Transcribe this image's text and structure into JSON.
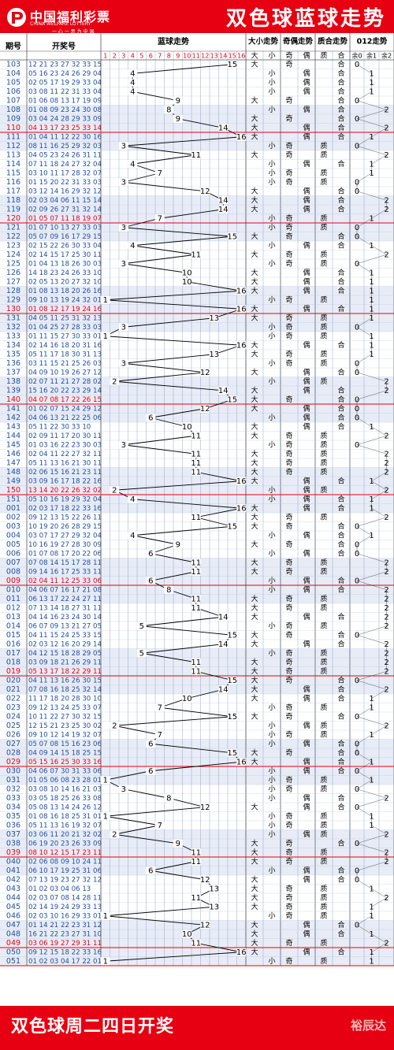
{
  "header": {
    "logo_cn": "中国福利彩票",
    "logo_en": "CHINA WELFARE LOTTERY",
    "logo_slogan": "一 心 一 意 为 中 国",
    "title": "双色球蓝球走势"
  },
  "footer": {
    "text": "双色球周二四日开奖",
    "brand": "裕辰达"
  },
  "colors": {
    "brand_red": "#e60012",
    "issue_blue": "#1e50a0",
    "highlight_red": "#e60012",
    "grid_blue": "#7896c8",
    "alt_fill": "#e8ecf6"
  },
  "chart_data": {
    "type": "table",
    "column_headers": {
      "issue": "期号",
      "numbers": "开奖号",
      "blue_trend": "蓝球走势",
      "big_small": "大小走势",
      "odd_even": "奇偶走势",
      "prime_composite": "质合走势",
      "mod3": "012走势"
    },
    "blue_labels": [
      "1",
      "2",
      "3",
      "4",
      "5",
      "6",
      "7",
      "8",
      "9",
      "10",
      "11",
      "12",
      "13",
      "14",
      "15",
      "16"
    ],
    "sub_labels": {
      "big": "大",
      "small": "小",
      "odd": "奇",
      "even": "偶",
      "prime": "质",
      "composite": "合",
      "r0": "余0",
      "r1": "余1",
      "r2": "余2"
    },
    "draws": [
      {
        "issue": "103",
        "numbers": "12 21 23 27 32 33 15",
        "blue": 15
      },
      {
        "issue": "104",
        "numbers": "05 16 23 24 26 29 04",
        "blue": 4
      },
      {
        "issue": "105",
        "numbers": "02 05 17 19 29 33 04",
        "blue": 4
      },
      {
        "issue": "106",
        "numbers": "03 08 11 22 31 33 04",
        "blue": 4
      },
      {
        "issue": "107",
        "numbers": "01 06 08 13 17 19 09",
        "blue": 9
      },
      {
        "issue": "108",
        "numbers": "01 08 09 23 24 30 08",
        "blue": 8
      },
      {
        "issue": "109",
        "numbers": "03 04 24 28 29 33 09",
        "blue": 9
      },
      {
        "issue": "110",
        "numbers": "04 13 17 23 25 33 14",
        "blue": 14
      },
      {
        "issue": "111",
        "numbers": "01 04 11 12 22 30 16",
        "blue": 16
      },
      {
        "issue": "112",
        "numbers": "08 11 16 25 29 32 03",
        "blue": 3
      },
      {
        "issue": "113",
        "numbers": "04 05 23 24 26 31 11",
        "blue": 11
      },
      {
        "issue": "114",
        "numbers": "07 11 18 24 27 32 04",
        "blue": 4
      },
      {
        "issue": "115",
        "numbers": "03 10 11 17 28 32 07",
        "blue": 7
      },
      {
        "issue": "116",
        "numbers": "01 15 20 22 31 33 03",
        "blue": 3
      },
      {
        "issue": "117",
        "numbers": "03 12 14 16 29 32 12",
        "blue": 12
      },
      {
        "issue": "118",
        "numbers": "02 03 04 06 11 15 14",
        "blue": 14
      },
      {
        "issue": "119",
        "numbers": "02 09 26 27 31 32 14",
        "blue": 14
      },
      {
        "issue": "120",
        "numbers": "01 05 07 11 18 19 07",
        "blue": 7
      },
      {
        "issue": "121",
        "numbers": "01 07 10 13 27 33 03",
        "blue": 3
      },
      {
        "issue": "122",
        "numbers": "05 07 09 16 17 29 15",
        "blue": 15
      },
      {
        "issue": "123",
        "numbers": "02 15 22 26 30 33 04",
        "blue": 4
      },
      {
        "issue": "124",
        "numbers": "02 14 15 17 25 30 11",
        "blue": 11
      },
      {
        "issue": "125",
        "numbers": "01 04 13 18 26 30 03",
        "blue": 3
      },
      {
        "issue": "126",
        "numbers": "14 18 23 24 26 33 10",
        "blue": 10
      },
      {
        "issue": "127",
        "numbers": "02 05 13 20 27 32 10",
        "blue": 10
      },
      {
        "issue": "128",
        "numbers": "01 08 13 18 20 26 16",
        "blue": 16
      },
      {
        "issue": "129",
        "numbers": "09 10 13 19 24 32 01",
        "blue": 1
      },
      {
        "issue": "130",
        "numbers": "01 08 12 17 19 24 16",
        "blue": 16
      },
      {
        "issue": "131",
        "numbers": "04 05 11 25 31 32 13",
        "blue": 13
      },
      {
        "issue": "132",
        "numbers": "01 04 25 27 28 33 03",
        "blue": 3
      },
      {
        "issue": "133",
        "numbers": "01 11 15 27 30 33 01",
        "blue": 1
      },
      {
        "issue": "134",
        "numbers": "02 14 16 18 20 31 16",
        "blue": 16
      },
      {
        "issue": "135",
        "numbers": "05 11 17 18 30 31 13",
        "blue": 13
      },
      {
        "issue": "136",
        "numbers": "03 11 15 21 25 26 03",
        "blue": 3
      },
      {
        "issue": "137",
        "numbers": "04 09 10 19 26 27 12",
        "blue": 12
      },
      {
        "issue": "138",
        "numbers": "02 07 11 21 27 28 02",
        "blue": 2
      },
      {
        "issue": "139",
        "numbers": "15 16 20 22 23 29 14",
        "blue": 14
      },
      {
        "issue": "140",
        "numbers": "04 07 08 17 22 26 15",
        "blue": 15
      },
      {
        "issue": "141",
        "numbers": "01 02 07 15 24 29 12",
        "blue": 12
      },
      {
        "issue": "142",
        "numbers": "04 06 13 21 22 25 06",
        "blue": 6
      },
      {
        "issue": "143",
        "numbers": "05 11 22 30 33 10",
        "blue": 10
      },
      {
        "issue": "144",
        "numbers": "02 09 11 17 20 30 11",
        "blue": 11
      },
      {
        "issue": "145",
        "numbers": "01 03 16 22 23 30 03",
        "blue": 3
      },
      {
        "issue": "146",
        "numbers": "02 04 11 22 27 32 11",
        "blue": 11
      },
      {
        "issue": "147",
        "numbers": "05 11 13 16 21 30 11",
        "blue": 11
      },
      {
        "issue": "148",
        "numbers": "02 06 15 16 21 23 11",
        "blue": 11
      },
      {
        "issue": "149",
        "numbers": "03 09 16 17 18 22 16",
        "blue": 16
      },
      {
        "issue": "150",
        "numbers": "13 14 20 22 26 32 02",
        "blue": 2
      },
      {
        "issue": "151",
        "numbers": "05 10 16 19 29 32 04",
        "blue": 4
      },
      {
        "issue": "001",
        "numbers": "02 03 17 18 22 33 16",
        "blue": 16
      },
      {
        "issue": "002",
        "numbers": "09 12 13 15 22 26 11",
        "blue": 11
      },
      {
        "issue": "003",
        "numbers": "10 19 20 26 28 29 15",
        "blue": 15
      },
      {
        "issue": "004",
        "numbers": "03 07 17 27 29 32 04",
        "blue": 4
      },
      {
        "issue": "005",
        "numbers": "10 16 19 27 28 30 09",
        "blue": 9
      },
      {
        "issue": "006",
        "numbers": "01 07 08 17 20 22 06",
        "blue": 6
      },
      {
        "issue": "007",
        "numbers": "07 08 14 15 17 28 11",
        "blue": 11
      },
      {
        "issue": "008",
        "numbers": "09 14 16 17 25 33 11",
        "blue": 11
      },
      {
        "issue": "009",
        "numbers": "02 04 11 12 25 33 06",
        "blue": 6
      },
      {
        "issue": "010",
        "numbers": "04 06 07 16 17 21 08",
        "blue": 8
      },
      {
        "issue": "011",
        "numbers": "06 13 17 22 24 27 11",
        "blue": 11
      },
      {
        "issue": "012",
        "numbers": "07 13 14 18 27 31 11",
        "blue": 11
      },
      {
        "issue": "013",
        "numbers": "04 14 16 23 24 30 14",
        "blue": 14
      },
      {
        "issue": "014",
        "numbers": "06 07 09 13 21 27 05",
        "blue": 5
      },
      {
        "issue": "015",
        "numbers": "04 11 15 24 25 33 15",
        "blue": 15
      },
      {
        "issue": "016",
        "numbers": "02 03 12 16 20 29 14",
        "blue": 14
      },
      {
        "issue": "017",
        "numbers": "04 12 15 18 28 29 05",
        "blue": 5
      },
      {
        "issue": "018",
        "numbers": "03 09 18 21 26 29 11",
        "blue": 11
      },
      {
        "issue": "019",
        "numbers": "05 13 17 18 22 29 11",
        "blue": 11
      },
      {
        "issue": "020",
        "numbers": "04 11 13 16 26 30 15",
        "blue": 15
      },
      {
        "issue": "021",
        "numbers": "07 08 16 18 25 32 14",
        "blue": 14
      },
      {
        "issue": "022",
        "numbers": "11 17 18 20 28 30 10",
        "blue": 10
      },
      {
        "issue": "023",
        "numbers": "09 12 13 24 25 33 07",
        "blue": 7
      },
      {
        "issue": "024",
        "numbers": "10 11 22 27 30 32 15",
        "blue": 15
      },
      {
        "issue": "025",
        "numbers": "12 15 21 23 25 30 02",
        "blue": 2
      },
      {
        "issue": "026",
        "numbers": "09 10 12 14 19 32 07",
        "blue": 7
      },
      {
        "issue": "027",
        "numbers": "05 07 08 15 16 23 06",
        "blue": 6
      },
      {
        "issue": "028",
        "numbers": "04 09 14 15 18 25 15",
        "blue": 15
      },
      {
        "issue": "029",
        "numbers": "05 15 16 25 30 33 16",
        "blue": 16
      },
      {
        "issue": "030",
        "numbers": "04 06 07 30 31 33 06",
        "blue": 6
      },
      {
        "issue": "031",
        "numbers": "01 05 06 08 23 28 01",
        "blue": 1
      },
      {
        "issue": "032",
        "numbers": "03 08 10 14 16 21 03",
        "blue": 3
      },
      {
        "issue": "033",
        "numbers": "03 05 18 25 26 33 08",
        "blue": 8
      },
      {
        "issue": "034",
        "numbers": "05 08 13 14 24 26 12",
        "blue": 12
      },
      {
        "issue": "035",
        "numbers": "01 08 16 18 25 31 01",
        "blue": 1
      },
      {
        "issue": "036",
        "numbers": "05 11 13 16 19 32 07",
        "blue": 7
      },
      {
        "issue": "037",
        "numbers": "03 06 11 20 21 32 02",
        "blue": 2
      },
      {
        "issue": "038",
        "numbers": "06 19 20 23 26 33 09",
        "blue": 9
      },
      {
        "issue": "039",
        "numbers": "08 10 12 15 17 23 11",
        "blue": 11
      },
      {
        "issue": "040",
        "numbers": "02 06 08 09 10 24 11",
        "blue": 11
      },
      {
        "issue": "041",
        "numbers": "06 10 17 19 25 31 06",
        "blue": 6
      },
      {
        "issue": "042",
        "numbers": "07 13 19 23 27 32 12",
        "blue": 12
      },
      {
        "issue": "043",
        "numbers": "01 02 03 04 06 13",
        "blue": 13
      },
      {
        "issue": "044",
        "numbers": "02 03 07 08 14 28 11",
        "blue": 11
      },
      {
        "issue": "045",
        "numbers": "02 14 19 24 29 33 13",
        "blue": 13
      },
      {
        "issue": "046",
        "numbers": "02 03 10 16 29 33 01",
        "blue": 1
      },
      {
        "issue": "047",
        "numbers": "01 14 21 22 23 31 12",
        "blue": 12
      },
      {
        "issue": "048",
        "numbers": "16 21 22 23 27 31 10",
        "blue": 10
      },
      {
        "issue": "049",
        "numbers": "03 06 19 27 29 31 11",
        "blue": 11
      },
      {
        "issue": "050",
        "numbers": "09 12 15 18 22 33 16",
        "blue": 16
      },
      {
        "issue": "051",
        "numbers": "01 02 03 04 17 22 01",
        "blue": 1
      }
    ]
  }
}
